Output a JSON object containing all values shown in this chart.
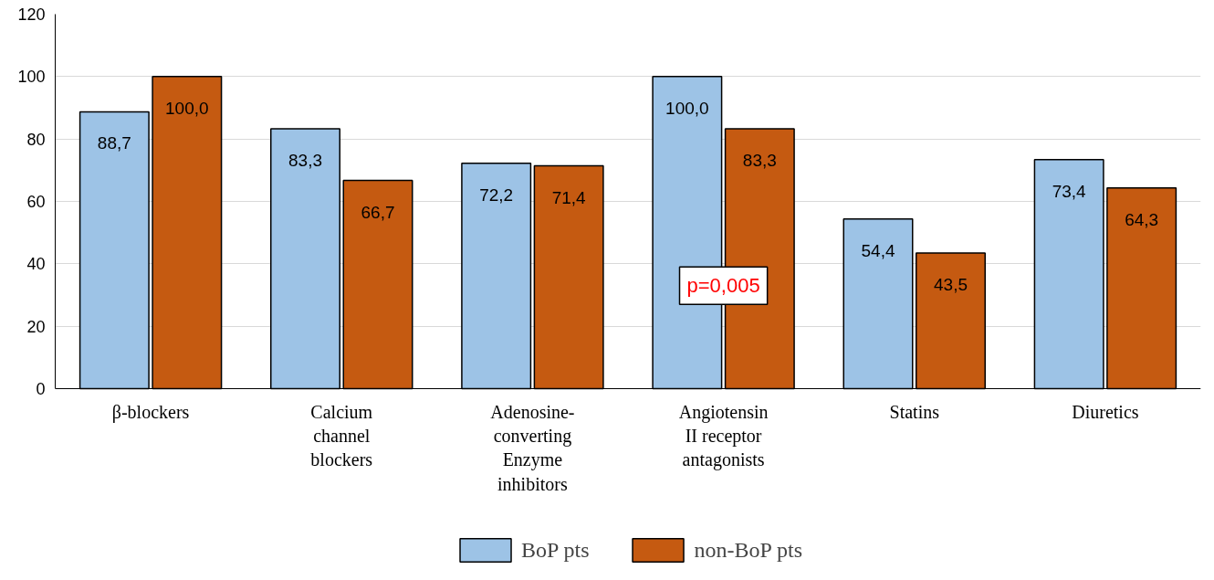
{
  "chart_data": {
    "type": "bar",
    "categories": [
      "β-blockers",
      "Calcium\nchannel\nblockers",
      "Adenosine-\nconverting\nEnzyme\ninhibitors",
      "Angiotensin\nII receptor\nantagonists",
      "Statins",
      "Diuretics"
    ],
    "series": [
      {
        "name": "BoP pts",
        "color": "#9dc3e6",
        "values": [
          88.7,
          83.3,
          72.2,
          100.0,
          54.4,
          73.4
        ],
        "value_labels": [
          "88,7",
          "83,3",
          "72,2",
          "100,0",
          "54,4",
          "73,4"
        ]
      },
      {
        "name": "non-BoP pts",
        "color": "#c55a11",
        "values": [
          100.0,
          66.7,
          71.4,
          83.3,
          43.5,
          64.3
        ],
        "value_labels": [
          "100,0",
          "66,7",
          "71,4",
          "83,3",
          "43,5",
          "64,3"
        ]
      }
    ],
    "ylim": [
      0,
      120
    ],
    "yticks": [
      0,
      20,
      40,
      60,
      80,
      100,
      120
    ],
    "grid": "y",
    "legend": "bottom",
    "annotations": [
      {
        "text": "p=0,005",
        "x": "Angiotensin\nII receptor\nantagonists",
        "y": 33
      }
    ]
  }
}
